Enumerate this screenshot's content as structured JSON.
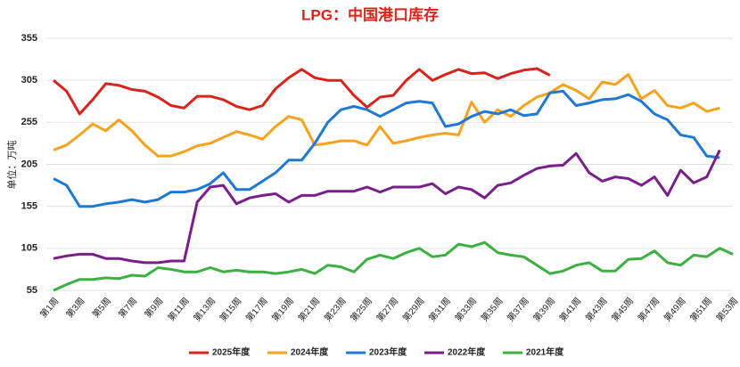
{
  "chart_data": {
    "type": "line",
    "title": "LPG：中国港口库存",
    "y_label": "单位：万吨",
    "categories": [
      "第1周",
      null,
      "第3周",
      null,
      "第5周",
      null,
      "第7周",
      null,
      "第9周",
      null,
      "第11周",
      null,
      "第13周",
      null,
      "第15周",
      null,
      "第17周",
      null,
      "第19周",
      null,
      "第21周",
      null,
      "第23周",
      null,
      "第25周",
      null,
      "第27周",
      null,
      "第29周",
      null,
      "第31周",
      null,
      "第33周",
      null,
      "第35周",
      null,
      "第37周",
      null,
      "第39周",
      null,
      "第41周",
      null,
      "第43周",
      null,
      "第45周",
      null,
      "第47周",
      null,
      "第49周",
      null,
      "第51周",
      null,
      "第53周"
    ],
    "ylim": [
      55,
      355
    ],
    "yticks": [
      55,
      105,
      155,
      205,
      255,
      305,
      355
    ],
    "grid": true,
    "legend": "bottom",
    "series": [
      {
        "name": "2025年度",
        "color": "#d9231d",
        "values": [
          305,
          292,
          265,
          282,
          301,
          299,
          294,
          292,
          285,
          275,
          272,
          286,
          286,
          282,
          274,
          270,
          275,
          295,
          308,
          318,
          308,
          305,
          305,
          287,
          273,
          285,
          287,
          305,
          318,
          305,
          312,
          318,
          313,
          314,
          307,
          313,
          317,
          319,
          311,
          null,
          null,
          null,
          null,
          null,
          null,
          null,
          null,
          null,
          null,
          null,
          null,
          null,
          null
        ]
      },
      {
        "name": "2024年度",
        "color": "#f7a21b",
        "values": [
          222,
          228,
          240,
          253,
          245,
          258,
          245,
          228,
          215,
          215,
          220,
          227,
          230,
          237,
          244,
          240,
          235,
          250,
          262,
          258,
          228,
          230,
          233,
          233,
          228,
          250,
          230,
          233,
          237,
          240,
          242,
          240,
          279,
          255,
          270,
          262,
          275,
          285,
          290,
          300,
          293,
          283,
          303,
          300,
          312,
          283,
          293,
          275,
          272,
          278,
          268,
          272,
          null
        ]
      },
      {
        "name": "2023年度",
        "color": "#1f78d1",
        "values": [
          188,
          180,
          155,
          155,
          158,
          160,
          163,
          160,
          163,
          172,
          172,
          175,
          182,
          195,
          175,
          175,
          185,
          195,
          210,
          210,
          230,
          255,
          270,
          274,
          270,
          262,
          270,
          278,
          280,
          278,
          250,
          253,
          262,
          268,
          265,
          270,
          263,
          265,
          290,
          292,
          275,
          278,
          282,
          283,
          288,
          280,
          265,
          258,
          240,
          237,
          215,
          213,
          null
        ]
      },
      {
        "name": "2022年度",
        "color": "#7a1f8a",
        "values": [
          93,
          96,
          98,
          98,
          93,
          93,
          90,
          88,
          88,
          90,
          90,
          160,
          178,
          180,
          158,
          165,
          168,
          170,
          160,
          168,
          168,
          173,
          173,
          173,
          178,
          172,
          178,
          178,
          178,
          182,
          170,
          178,
          175,
          165,
          180,
          183,
          192,
          200,
          203,
          204,
          218,
          195,
          185,
          190,
          188,
          180,
          190,
          168,
          198,
          183,
          190,
          222,
          null
        ]
      },
      {
        "name": "2021年度",
        "color": "#3cb043",
        "values": [
          55,
          62,
          68,
          68,
          70,
          69,
          73,
          72,
          82,
          80,
          77,
          77,
          82,
          77,
          79,
          77,
          77,
          75,
          77,
          80,
          75,
          85,
          83,
          77,
          92,
          97,
          93,
          100,
          105,
          95,
          97,
          110,
          107,
          112,
          100,
          97,
          95,
          85,
          75,
          78,
          85,
          88,
          78,
          78,
          92,
          93,
          102,
          88,
          85,
          97,
          95,
          105,
          98
        ]
      }
    ]
  }
}
